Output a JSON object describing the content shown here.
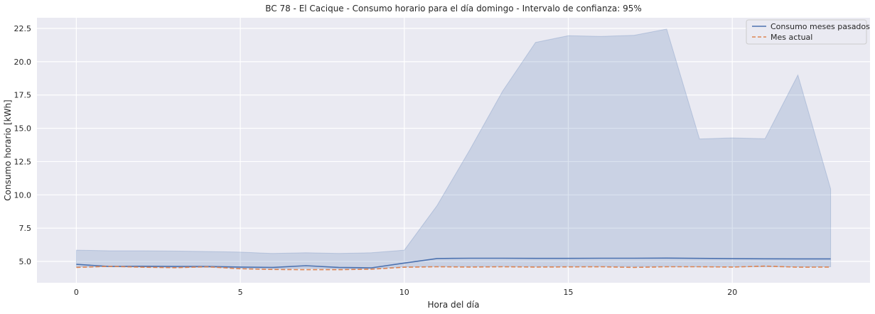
{
  "chart_data": {
    "type": "line",
    "title": "BC 78 - El Cacique - Consumo horario para el día domingo - Intervalo de confianza: 95%",
    "xlabel": "Hora del día",
    "ylabel": "Consumo horario [kWh]",
    "xlim": [
      -1.2,
      24.2
    ],
    "ylim": [
      3.4,
      23.3
    ],
    "xticks": [
      0,
      5,
      10,
      15,
      20
    ],
    "yticks": [
      5.0,
      7.5,
      10.0,
      12.5,
      15.0,
      17.5,
      20.0,
      22.5
    ],
    "grid": true,
    "legend_position": "top-right",
    "x": [
      0,
      1,
      2,
      3,
      4,
      5,
      6,
      7,
      8,
      9,
      10,
      11,
      12,
      13,
      14,
      15,
      16,
      17,
      18,
      19,
      20,
      21,
      22,
      23
    ],
    "series": [
      {
        "name": "Consumo meses pasados",
        "color": "#4c72b0",
        "style": "solid",
        "values": [
          4.78,
          4.62,
          4.64,
          4.62,
          4.62,
          4.58,
          4.55,
          4.68,
          4.55,
          4.52,
          4.88,
          5.22,
          5.24,
          5.24,
          5.23,
          5.23,
          5.24,
          5.24,
          5.25,
          5.23,
          5.21,
          5.2,
          5.19,
          5.19
        ]
      },
      {
        "name": "Mes actual",
        "color": "#dd8452",
        "style": "dashed",
        "values": [
          4.55,
          4.63,
          4.57,
          4.53,
          4.6,
          4.45,
          4.4,
          4.38,
          4.38,
          4.42,
          4.57,
          4.6,
          4.58,
          4.6,
          4.58,
          4.59,
          4.6,
          4.55,
          4.6,
          4.6,
          4.58,
          4.65,
          4.57,
          4.58
        ]
      }
    ],
    "confidence_band": {
      "color": "#4c72b0",
      "lower": [
        4.6,
        4.6,
        4.58,
        4.55,
        4.55,
        4.5,
        4.45,
        4.5,
        4.45,
        4.45,
        4.6,
        4.62,
        4.62,
        4.62,
        4.62,
        4.62,
        4.62,
        4.62,
        4.62,
        4.6,
        4.6,
        4.6,
        4.6,
        4.6
      ],
      "upper": [
        5.85,
        5.8,
        5.8,
        5.78,
        5.75,
        5.7,
        5.6,
        5.65,
        5.6,
        5.65,
        5.85,
        9.2,
        13.4,
        17.8,
        21.45,
        21.95,
        21.9,
        21.98,
        22.45,
        14.2,
        14.28,
        14.22,
        19.0,
        10.45
      ]
    }
  }
}
